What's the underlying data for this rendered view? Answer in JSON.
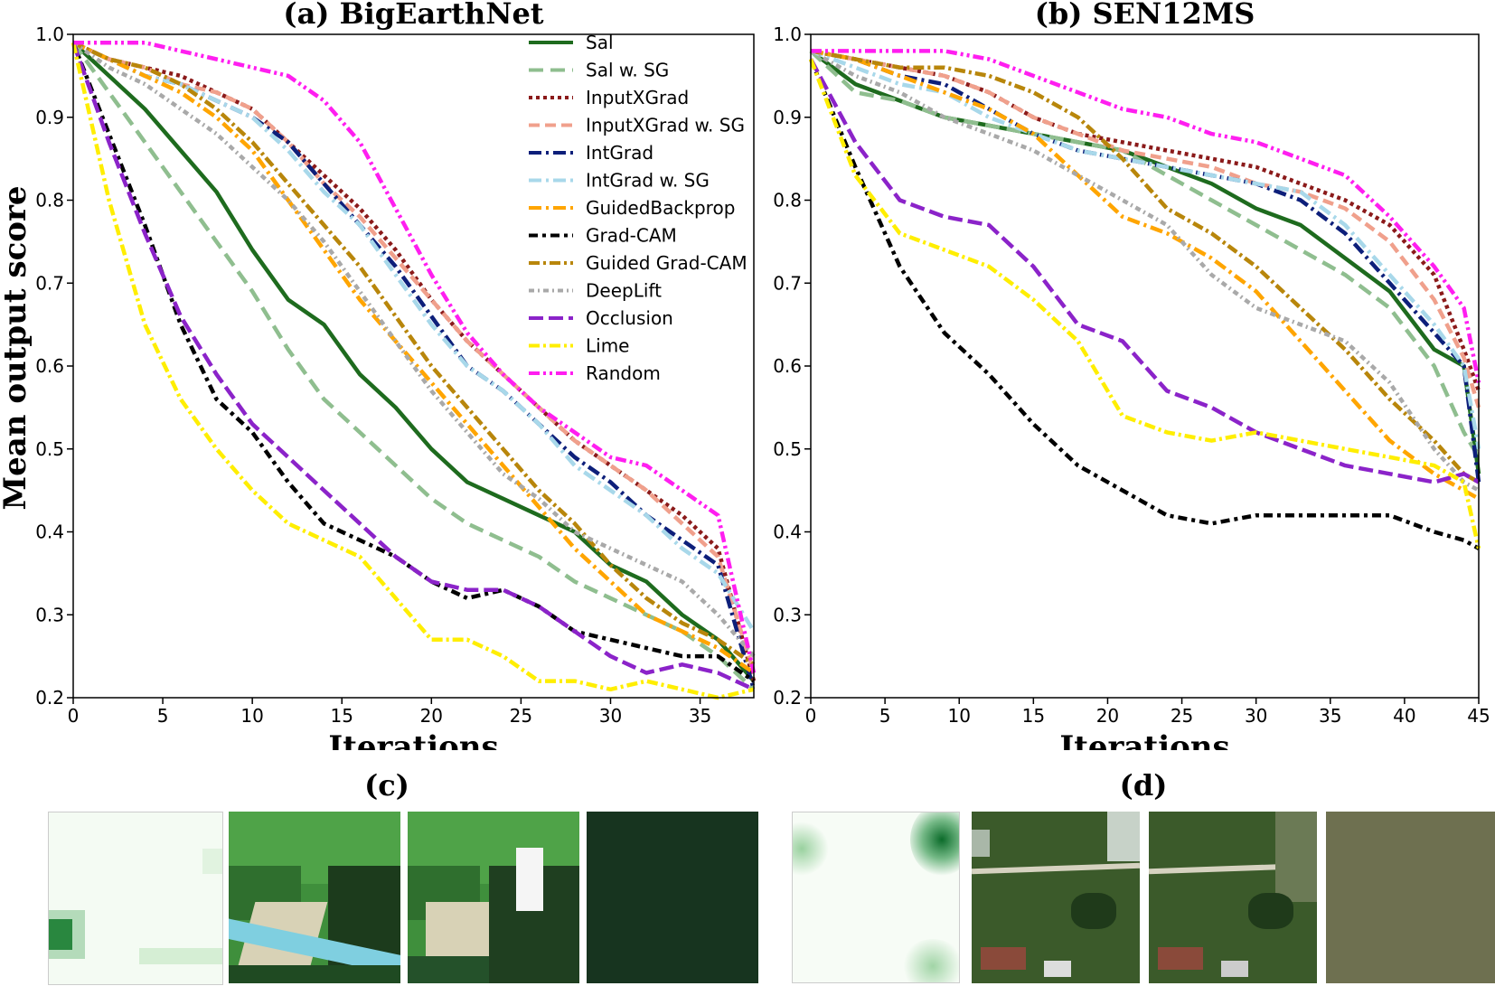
{
  "ylabel": "Mean output score",
  "legend": [
    {
      "name": "Sal",
      "color": "#1e6b1e",
      "dash": ""
    },
    {
      "name": "Sal w. SG",
      "color": "#8fbe8f",
      "dash": "16,8"
    },
    {
      "name": "InputXGrad",
      "color": "#8b1a1a",
      "dash": "4,4"
    },
    {
      "name": "InputXGrad w. SG",
      "color": "#f0a08c",
      "dash": "12,6"
    },
    {
      "name": "IntGrad",
      "color": "#0d1f7a",
      "dash": "14,5,3,5"
    },
    {
      "name": "IntGrad w. SG",
      "color": "#a8d8ea",
      "dash": "14,5,3,5"
    },
    {
      "name": "GuidedBackprop",
      "color": "#ffa500",
      "dash": "14,5,3,5"
    },
    {
      "name": "Grad-CAM",
      "color": "#000000",
      "dash": "10,5,4,5"
    },
    {
      "name": "Guided Grad-CAM",
      "color": "#b8860b",
      "dash": "12,4,3,4"
    },
    {
      "name": "DeepLift",
      "color": "#a9a9a9",
      "dash": "6,4,2,4"
    },
    {
      "name": "Occlusion",
      "color": "#8b23c9",
      "dash": "16,6"
    },
    {
      "name": "Lime",
      "color": "#ffee00",
      "dash": "12,4,3,4"
    },
    {
      "name": "Random",
      "color": "#ff1ef0",
      "dash": "12,4,3,4,3,4"
    }
  ],
  "chart_data": [
    {
      "type": "line",
      "title": "(a) BigEarthNet",
      "xlabel": "Iterations",
      "ylabel": "Mean output score",
      "xlim": [
        0,
        38
      ],
      "ylim": [
        0.2,
        1.0
      ],
      "xticks": [
        0,
        5,
        10,
        15,
        20,
        25,
        30,
        35
      ],
      "yticks": [
        0.2,
        0.3,
        0.4,
        0.5,
        0.6,
        0.7,
        0.8,
        0.9,
        1.0
      ],
      "legend_position": "upper-right",
      "x": [
        0,
        2,
        4,
        6,
        8,
        10,
        12,
        14,
        16,
        18,
        20,
        22,
        24,
        26,
        28,
        30,
        32,
        34,
        36,
        38
      ],
      "series": [
        {
          "name": "Sal",
          "values": [
            0.99,
            0.95,
            0.91,
            0.86,
            0.81,
            0.74,
            0.68,
            0.65,
            0.59,
            0.55,
            0.5,
            0.46,
            0.44,
            0.42,
            0.4,
            0.36,
            0.34,
            0.3,
            0.27,
            0.22
          ]
        },
        {
          "name": "Sal w. SG",
          "values": [
            0.99,
            0.93,
            0.87,
            0.81,
            0.75,
            0.69,
            0.62,
            0.56,
            0.52,
            0.48,
            0.44,
            0.41,
            0.39,
            0.37,
            0.34,
            0.32,
            0.3,
            0.28,
            0.25,
            0.21
          ]
        },
        {
          "name": "InputXGrad",
          "values": [
            0.99,
            0.97,
            0.96,
            0.95,
            0.93,
            0.91,
            0.87,
            0.83,
            0.79,
            0.74,
            0.68,
            0.63,
            0.59,
            0.55,
            0.51,
            0.48,
            0.45,
            0.42,
            0.38,
            0.22
          ]
        },
        {
          "name": "InputXGrad w. SG",
          "values": [
            0.99,
            0.97,
            0.96,
            0.94,
            0.93,
            0.91,
            0.87,
            0.82,
            0.78,
            0.73,
            0.68,
            0.63,
            0.59,
            0.55,
            0.51,
            0.48,
            0.45,
            0.41,
            0.37,
            0.23
          ]
        },
        {
          "name": "IntGrad",
          "values": [
            0.99,
            0.97,
            0.95,
            0.94,
            0.92,
            0.9,
            0.87,
            0.82,
            0.77,
            0.72,
            0.66,
            0.6,
            0.57,
            0.53,
            0.49,
            0.46,
            0.42,
            0.39,
            0.36,
            0.21
          ]
        },
        {
          "name": "IntGrad w. SG",
          "values": [
            0.99,
            0.97,
            0.95,
            0.94,
            0.92,
            0.9,
            0.86,
            0.81,
            0.77,
            0.71,
            0.65,
            0.6,
            0.57,
            0.53,
            0.48,
            0.45,
            0.42,
            0.38,
            0.35,
            0.28
          ]
        },
        {
          "name": "GuidedBackprop",
          "values": [
            0.99,
            0.97,
            0.95,
            0.93,
            0.9,
            0.86,
            0.8,
            0.74,
            0.68,
            0.63,
            0.58,
            0.53,
            0.48,
            0.43,
            0.38,
            0.34,
            0.3,
            0.28,
            0.26,
            0.23
          ]
        },
        {
          "name": "Grad-CAM",
          "values": [
            0.99,
            0.88,
            0.77,
            0.65,
            0.56,
            0.52,
            0.46,
            0.41,
            0.39,
            0.37,
            0.34,
            0.32,
            0.33,
            0.31,
            0.28,
            0.27,
            0.26,
            0.25,
            0.25,
            0.22
          ]
        },
        {
          "name": "Guided Grad-CAM",
          "values": [
            0.99,
            0.97,
            0.96,
            0.94,
            0.91,
            0.87,
            0.82,
            0.77,
            0.72,
            0.66,
            0.6,
            0.55,
            0.5,
            0.45,
            0.41,
            0.36,
            0.32,
            0.29,
            0.27,
            0.24
          ]
        },
        {
          "name": "DeepLift",
          "values": [
            0.99,
            0.96,
            0.94,
            0.91,
            0.88,
            0.84,
            0.8,
            0.75,
            0.69,
            0.63,
            0.57,
            0.52,
            0.47,
            0.44,
            0.4,
            0.38,
            0.36,
            0.34,
            0.3,
            0.25
          ]
        },
        {
          "name": "Occlusion",
          "values": [
            0.99,
            0.87,
            0.76,
            0.66,
            0.59,
            0.53,
            0.49,
            0.45,
            0.41,
            0.37,
            0.34,
            0.33,
            0.33,
            0.31,
            0.28,
            0.25,
            0.23,
            0.24,
            0.23,
            0.21
          ]
        },
        {
          "name": "Lime",
          "values": [
            0.99,
            0.8,
            0.65,
            0.56,
            0.5,
            0.45,
            0.41,
            0.39,
            0.37,
            0.32,
            0.27,
            0.27,
            0.25,
            0.22,
            0.22,
            0.21,
            0.22,
            0.21,
            0.2,
            0.21
          ]
        },
        {
          "name": "Random",
          "values": [
            0.99,
            0.99,
            0.99,
            0.98,
            0.97,
            0.96,
            0.95,
            0.92,
            0.87,
            0.79,
            0.71,
            0.64,
            0.59,
            0.55,
            0.52,
            0.49,
            0.48,
            0.45,
            0.42,
            0.23
          ]
        }
      ]
    },
    {
      "type": "line",
      "title": "(b) SEN12MS",
      "xlabel": "Iterations",
      "xlim": [
        0,
        45
      ],
      "ylim": [
        0.2,
        1.0
      ],
      "xticks": [
        0,
        5,
        10,
        15,
        20,
        25,
        30,
        35,
        40,
        45
      ],
      "yticks": [
        0.2,
        0.3,
        0.4,
        0.5,
        0.6,
        0.7,
        0.8,
        0.9,
        1.0
      ],
      "x": [
        0,
        3,
        6,
        9,
        12,
        15,
        18,
        21,
        24,
        27,
        30,
        33,
        36,
        39,
        42,
        44,
        45
      ],
      "series": [
        {
          "name": "Sal",
          "values": [
            0.98,
            0.94,
            0.92,
            0.9,
            0.89,
            0.88,
            0.87,
            0.86,
            0.84,
            0.82,
            0.79,
            0.77,
            0.73,
            0.69,
            0.62,
            0.6,
            0.47
          ]
        },
        {
          "name": "Sal w. SG",
          "values": [
            0.98,
            0.93,
            0.92,
            0.9,
            0.89,
            0.88,
            0.87,
            0.86,
            0.83,
            0.8,
            0.77,
            0.74,
            0.71,
            0.67,
            0.6,
            0.52,
            0.49
          ]
        },
        {
          "name": "InputXGrad",
          "values": [
            0.98,
            0.97,
            0.96,
            0.95,
            0.93,
            0.9,
            0.88,
            0.87,
            0.86,
            0.85,
            0.84,
            0.82,
            0.8,
            0.77,
            0.71,
            0.62,
            0.57
          ]
        },
        {
          "name": "InputXGrad w. SG",
          "values": [
            0.98,
            0.97,
            0.96,
            0.95,
            0.93,
            0.9,
            0.88,
            0.86,
            0.85,
            0.84,
            0.82,
            0.81,
            0.79,
            0.75,
            0.68,
            0.61,
            0.55
          ]
        },
        {
          "name": "IntGrad",
          "values": [
            0.98,
            0.97,
            0.95,
            0.94,
            0.91,
            0.88,
            0.86,
            0.85,
            0.84,
            0.83,
            0.82,
            0.8,
            0.76,
            0.7,
            0.64,
            0.6,
            0.46
          ]
        },
        {
          "name": "IntGrad w. SG",
          "values": [
            0.98,
            0.96,
            0.94,
            0.93,
            0.9,
            0.88,
            0.86,
            0.85,
            0.84,
            0.83,
            0.82,
            0.81,
            0.77,
            0.71,
            0.65,
            0.6,
            0.5
          ]
        },
        {
          "name": "GuidedBackprop",
          "values": [
            0.98,
            0.97,
            0.95,
            0.93,
            0.91,
            0.88,
            0.83,
            0.78,
            0.76,
            0.73,
            0.69,
            0.63,
            0.57,
            0.51,
            0.47,
            0.45,
            0.44
          ]
        },
        {
          "name": "Grad-CAM",
          "values": [
            0.97,
            0.84,
            0.72,
            0.64,
            0.59,
            0.53,
            0.48,
            0.45,
            0.42,
            0.41,
            0.42,
            0.42,
            0.42,
            0.42,
            0.4,
            0.39,
            0.38
          ]
        },
        {
          "name": "Guided Grad-CAM",
          "values": [
            0.98,
            0.97,
            0.96,
            0.96,
            0.95,
            0.93,
            0.9,
            0.85,
            0.79,
            0.76,
            0.72,
            0.67,
            0.62,
            0.56,
            0.51,
            0.47,
            0.46
          ]
        },
        {
          "name": "DeepLift",
          "values": [
            0.98,
            0.95,
            0.93,
            0.9,
            0.88,
            0.86,
            0.83,
            0.8,
            0.77,
            0.71,
            0.67,
            0.65,
            0.63,
            0.58,
            0.5,
            0.46,
            0.45
          ]
        },
        {
          "name": "Occlusion",
          "values": [
            0.97,
            0.87,
            0.8,
            0.78,
            0.77,
            0.72,
            0.65,
            0.63,
            0.57,
            0.55,
            0.52,
            0.5,
            0.48,
            0.47,
            0.46,
            0.47,
            0.46
          ]
        },
        {
          "name": "Lime",
          "values": [
            0.97,
            0.83,
            0.76,
            0.74,
            0.72,
            0.68,
            0.63,
            0.54,
            0.52,
            0.51,
            0.52,
            0.51,
            0.5,
            0.49,
            0.48,
            0.46,
            0.38
          ]
        },
        {
          "name": "Random",
          "values": [
            0.98,
            0.98,
            0.98,
            0.98,
            0.97,
            0.95,
            0.93,
            0.91,
            0.9,
            0.88,
            0.87,
            0.85,
            0.83,
            0.78,
            0.72,
            0.67,
            0.58
          ]
        }
      ]
    }
  ],
  "bottom_panels": {
    "left_label": "(c)",
    "right_label": "(d)"
  }
}
